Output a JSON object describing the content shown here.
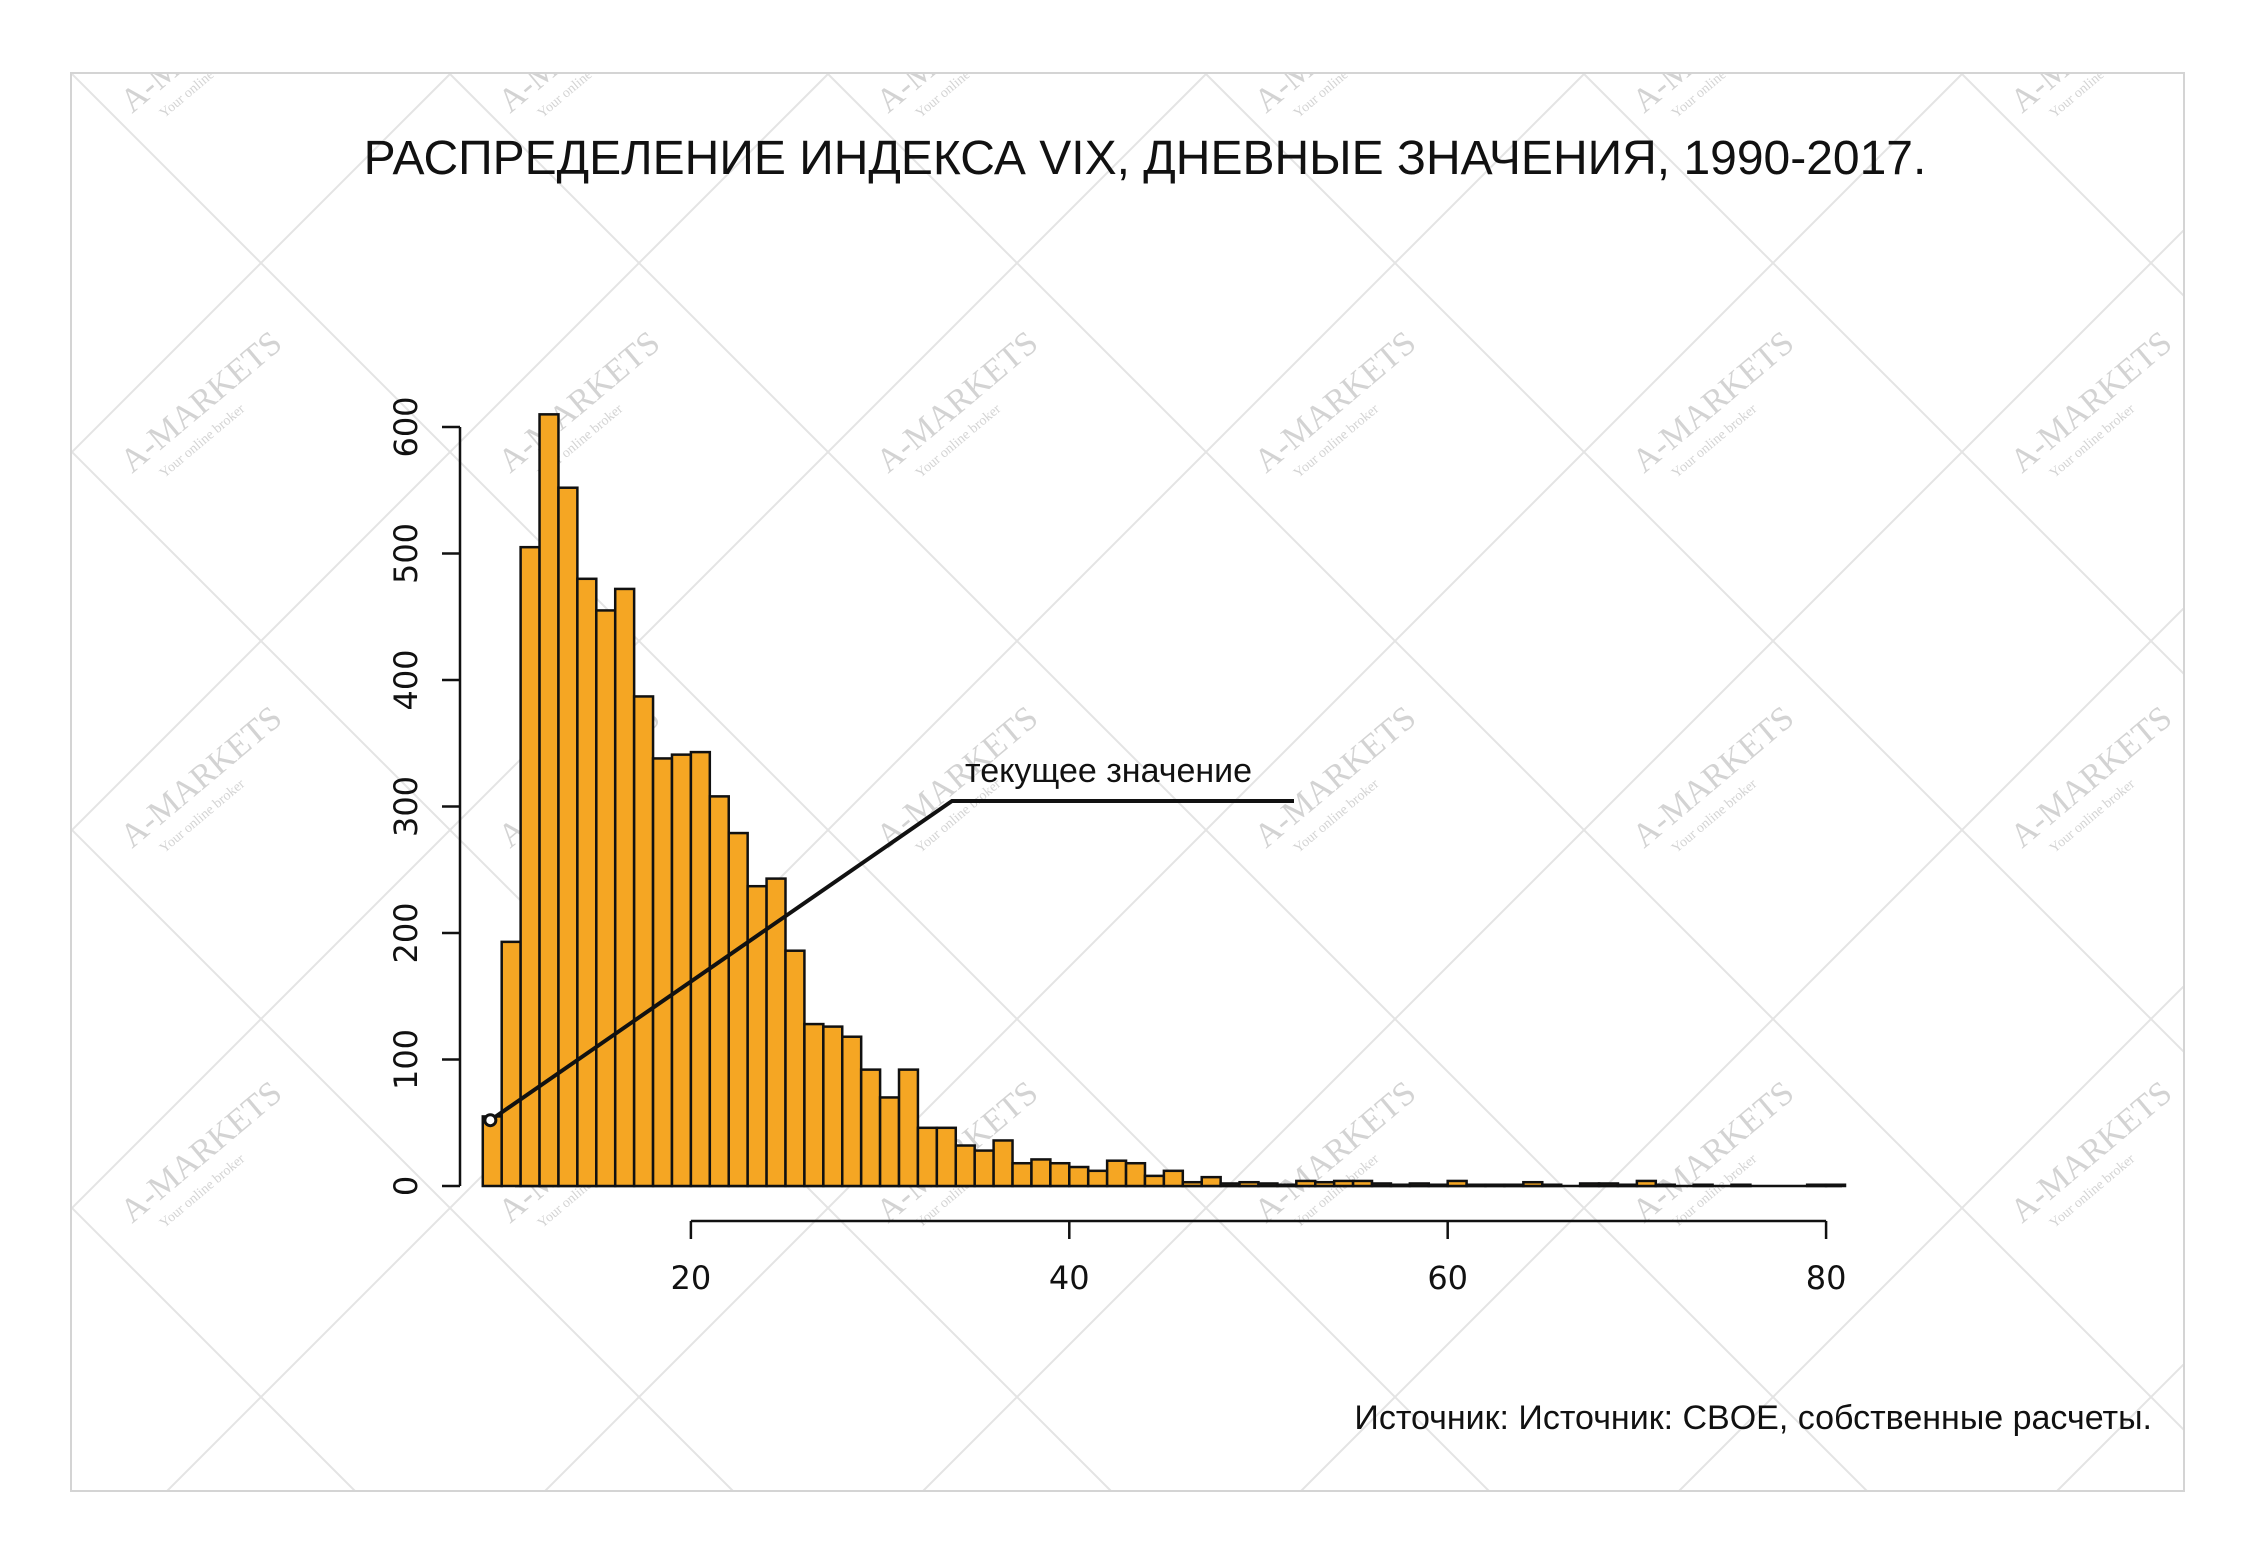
{
  "chart_data": {
    "type": "bar",
    "title": "РАСПРЕДЕЛЕНИЕ ИНДЕКСА VIX, ДНЕВНЫЕ ЗНАЧЕНИЯ, 1990-2017.",
    "xlabel": "",
    "ylabel": "",
    "bin_width": 1,
    "xlim": [
      0,
      81
    ],
    "ylim": [
      0,
      600
    ],
    "x_ticks": [
      20,
      40,
      60,
      80
    ],
    "x_tick_labels": [
      "20",
      "40",
      "60",
      "80"
    ],
    "y_ticks": [
      0,
      100,
      200,
      300,
      400,
      500,
      600
    ],
    "y_tick_labels": [
      "0",
      "100",
      "200",
      "300",
      "400",
      "500",
      "600"
    ],
    "bar_color": "#f5a623",
    "bins": [
      {
        "x0": 9,
        "x1": 10,
        "count": 55
      },
      {
        "x0": 10,
        "x1": 11,
        "count": 193
      },
      {
        "x0": 11,
        "x1": 12,
        "count": 505
      },
      {
        "x0": 12,
        "x1": 13,
        "count": 610
      },
      {
        "x0": 13,
        "x1": 14,
        "count": 552
      },
      {
        "x0": 14,
        "x1": 15,
        "count": 480
      },
      {
        "x0": 15,
        "x1": 16,
        "count": 455
      },
      {
        "x0": 16,
        "x1": 17,
        "count": 472
      },
      {
        "x0": 17,
        "x1": 18,
        "count": 387
      },
      {
        "x0": 18,
        "x1": 19,
        "count": 338
      },
      {
        "x0": 19,
        "x1": 20,
        "count": 341
      },
      {
        "x0": 20,
        "x1": 21,
        "count": 343
      },
      {
        "x0": 21,
        "x1": 22,
        "count": 308
      },
      {
        "x0": 22,
        "x1": 23,
        "count": 279
      },
      {
        "x0": 23,
        "x1": 24,
        "count": 237
      },
      {
        "x0": 24,
        "x1": 25,
        "count": 243
      },
      {
        "x0": 25,
        "x1": 26,
        "count": 186
      },
      {
        "x0": 26,
        "x1": 27,
        "count": 128
      },
      {
        "x0": 27,
        "x1": 28,
        "count": 126
      },
      {
        "x0": 28,
        "x1": 29,
        "count": 118
      },
      {
        "x0": 29,
        "x1": 30,
        "count": 92
      },
      {
        "x0": 30,
        "x1": 31,
        "count": 70
      },
      {
        "x0": 31,
        "x1": 32,
        "count": 92
      },
      {
        "x0": 32,
        "x1": 33,
        "count": 46
      },
      {
        "x0": 33,
        "x1": 34,
        "count": 46
      },
      {
        "x0": 34,
        "x1": 35,
        "count": 32
      },
      {
        "x0": 35,
        "x1": 36,
        "count": 28
      },
      {
        "x0": 36,
        "x1": 37,
        "count": 36
      },
      {
        "x0": 37,
        "x1": 38,
        "count": 18
      },
      {
        "x0": 38,
        "x1": 39,
        "count": 21
      },
      {
        "x0": 39,
        "x1": 40,
        "count": 18
      },
      {
        "x0": 40,
        "x1": 41,
        "count": 15
      },
      {
        "x0": 41,
        "x1": 42,
        "count": 12
      },
      {
        "x0": 42,
        "x1": 43,
        "count": 20
      },
      {
        "x0": 43,
        "x1": 44,
        "count": 18
      },
      {
        "x0": 44,
        "x1": 45,
        "count": 8
      },
      {
        "x0": 45,
        "x1": 46,
        "count": 12
      },
      {
        "x0": 46,
        "x1": 47,
        "count": 3
      },
      {
        "x0": 47,
        "x1": 48,
        "count": 7
      },
      {
        "x0": 48,
        "x1": 49,
        "count": 2
      },
      {
        "x0": 49,
        "x1": 50,
        "count": 3
      },
      {
        "x0": 50,
        "x1": 51,
        "count": 2
      },
      {
        "x0": 51,
        "x1": 52,
        "count": 1
      },
      {
        "x0": 52,
        "x1": 53,
        "count": 4
      },
      {
        "x0": 53,
        "x1": 54,
        "count": 3
      },
      {
        "x0": 54,
        "x1": 55,
        "count": 4
      },
      {
        "x0": 55,
        "x1": 56,
        "count": 4
      },
      {
        "x0": 56,
        "x1": 57,
        "count": 2
      },
      {
        "x0": 57,
        "x1": 58,
        "count": 1
      },
      {
        "x0": 58,
        "x1": 59,
        "count": 2
      },
      {
        "x0": 59,
        "x1": 60,
        "count": 1
      },
      {
        "x0": 60,
        "x1": 61,
        "count": 4
      },
      {
        "x0": 61,
        "x1": 62,
        "count": 1
      },
      {
        "x0": 62,
        "x1": 63,
        "count": 1
      },
      {
        "x0": 63,
        "x1": 64,
        "count": 1
      },
      {
        "x0": 64,
        "x1": 65,
        "count": 3
      },
      {
        "x0": 65,
        "x1": 66,
        "count": 1
      },
      {
        "x0": 66,
        "x1": 67,
        "count": 0
      },
      {
        "x0": 67,
        "x1": 68,
        "count": 2
      },
      {
        "x0": 68,
        "x1": 69,
        "count": 2
      },
      {
        "x0": 69,
        "x1": 70,
        "count": 1
      },
      {
        "x0": 70,
        "x1": 71,
        "count": 4
      },
      {
        "x0": 71,
        "x1": 72,
        "count": 1
      },
      {
        "x0": 72,
        "x1": 73,
        "count": 0
      },
      {
        "x0": 73,
        "x1": 74,
        "count": 1
      },
      {
        "x0": 74,
        "x1": 75,
        "count": 0
      },
      {
        "x0": 75,
        "x1": 76,
        "count": 1
      },
      {
        "x0": 76,
        "x1": 77,
        "count": 0
      },
      {
        "x0": 77,
        "x1": 78,
        "count": 0
      },
      {
        "x0": 78,
        "x1": 79,
        "count": 0
      },
      {
        "x0": 79,
        "x1": 80,
        "count": 1
      },
      {
        "x0": 80,
        "x1": 81,
        "count": 1
      }
    ],
    "annotation": {
      "text": "текущее значение",
      "point": {
        "x": 9.4,
        "y": 52
      }
    },
    "source": "Источник: Источник: CBOE, собственные расчеты."
  },
  "watermark": {
    "brand": "A-MARKETS",
    "tagline": "Your online broker"
  }
}
